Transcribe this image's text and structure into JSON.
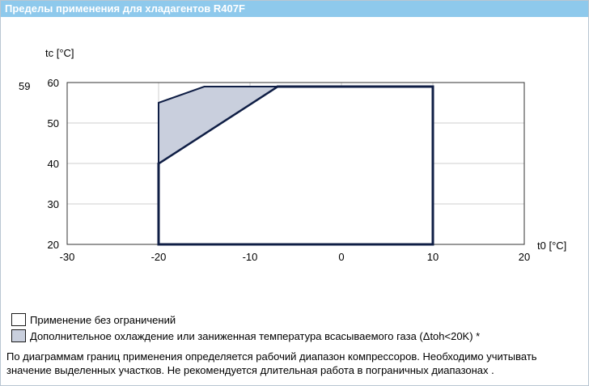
{
  "window": {
    "title": "Пределы применения для хладагентов R407F"
  },
  "chart_data": {
    "type": "area",
    "xlabel": "t0 [°C]",
    "ylabel": "tc [°C]",
    "xlim": [
      -30,
      20
    ],
    "ylim": [
      20,
      60
    ],
    "x_ticks": [
      -30,
      -20,
      -10,
      0,
      10,
      20
    ],
    "x_tick_labels": [
      "-30",
      "-20",
      "-10",
      "0",
      "10",
      "20"
    ],
    "y_ticks": [
      20,
      30,
      40,
      50,
      60
    ],
    "y_tick_labels": [
      "20",
      "30",
      "40",
      "50",
      "60"
    ],
    "grid": true,
    "marker_label": {
      "y": 59,
      "text": "59"
    },
    "series": [
      {
        "name": "Применение без ограничений",
        "color": "#ffffff",
        "stroke": "#0f1e45",
        "points": [
          [
            -20,
            20
          ],
          [
            -20,
            40
          ],
          [
            -7,
            59
          ],
          [
            10,
            59
          ],
          [
            10,
            20
          ]
        ]
      },
      {
        "name": "Дополнительное охлаждение или заниженная температура всасываемого газа (Δtoh<20K) *",
        "color": "#c9cfdd",
        "stroke": "#0f1e45",
        "points": [
          [
            -20,
            40
          ],
          [
            -20,
            55
          ],
          [
            -15,
            59
          ],
          [
            -7,
            59
          ]
        ]
      }
    ]
  },
  "legend": {
    "items": [
      {
        "label": "Применение без ограничений",
        "color": "#ffffff"
      },
      {
        "label": "Дополнительное охлаждение или заниженная температура всасываемого газа (Δtoh<20K) *",
        "color": "#c9cfdd"
      }
    ]
  },
  "footnote": {
    "text": "По диаграммам границ применения определяется рабочий диапазон компрессоров. Необходимо учитывать значение выделенных участков. Не рекомендуется длительная работа в пограничных диапазонах ."
  }
}
